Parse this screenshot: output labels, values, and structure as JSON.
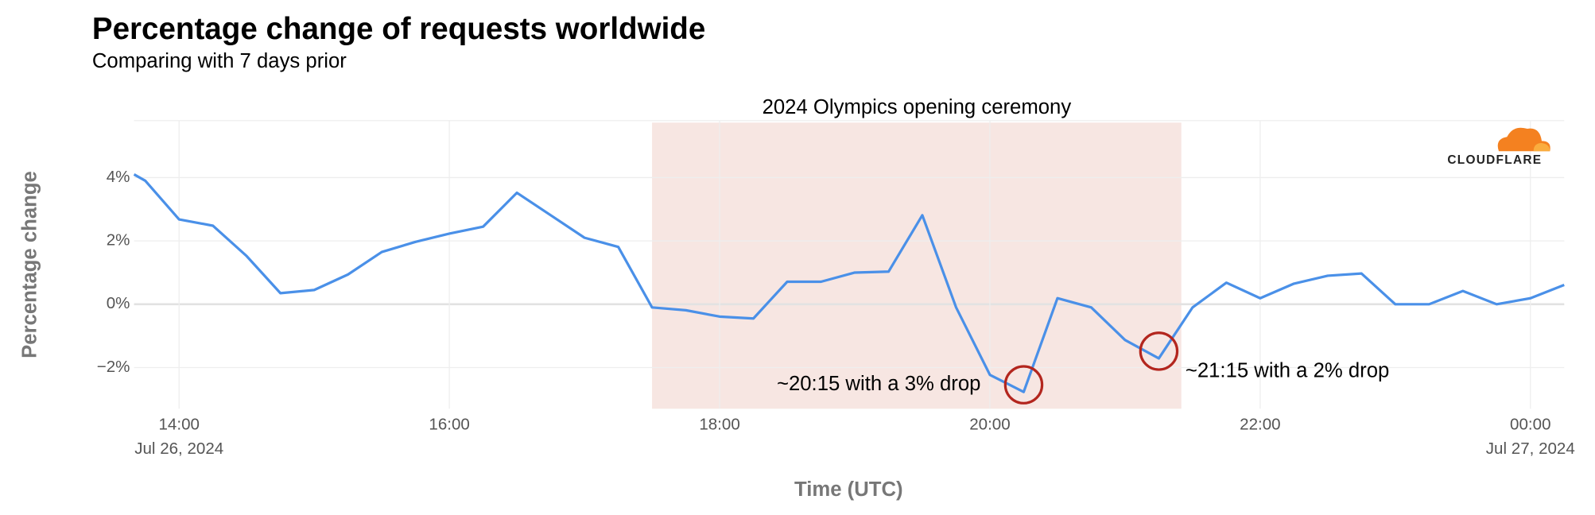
{
  "chart_data": {
    "type": "line",
    "title": "Percentage change of requests worldwide",
    "subtitle": "Comparing with 7 days prior",
    "x_label": "Time (UTC)",
    "y_label": "Percentage change",
    "logo": "CLOUDFLARE",
    "x": [
      "2024-07-26T13:40",
      "2024-07-26T13:45",
      "2024-07-26T14:00",
      "2024-07-26T14:15",
      "2024-07-26T14:30",
      "2024-07-26T14:45",
      "2024-07-26T15:00",
      "2024-07-26T15:15",
      "2024-07-26T15:30",
      "2024-07-26T15:45",
      "2024-07-26T16:00",
      "2024-07-26T16:15",
      "2024-07-26T16:30",
      "2024-07-26T16:45",
      "2024-07-26T17:00",
      "2024-07-26T17:15",
      "2024-07-26T17:30",
      "2024-07-26T17:45",
      "2024-07-26T18:00",
      "2024-07-26T18:15",
      "2024-07-26T18:30",
      "2024-07-26T18:45",
      "2024-07-26T19:00",
      "2024-07-26T19:15",
      "2024-07-26T19:30",
      "2024-07-26T19:45",
      "2024-07-26T20:00",
      "2024-07-26T20:15",
      "2024-07-26T20:30",
      "2024-07-26T20:45",
      "2024-07-26T21:00",
      "2024-07-26T21:15",
      "2024-07-26T21:30",
      "2024-07-26T21:45",
      "2024-07-26T22:00",
      "2024-07-26T22:15",
      "2024-07-26T22:30",
      "2024-07-26T22:45",
      "2024-07-26T23:00",
      "2024-07-26T23:15",
      "2024-07-26T23:30",
      "2024-07-26T23:45",
      "2024-07-27T00:00",
      "2024-07-27T00:15"
    ],
    "series": [
      {
        "color": "#4a90e8",
        "values": [
          4.1,
          3.9,
          2.68,
          2.48,
          1.52,
          0.35,
          0.45,
          0.94,
          1.65,
          1.97,
          2.23,
          2.45,
          3.52,
          2.81,
          2.1,
          1.81,
          -0.1,
          -0.19,
          -0.39,
          -0.45,
          0.71,
          0.71,
          1.0,
          1.03,
          2.81,
          -0.1,
          -2.23,
          -2.77,
          0.19,
          -0.1,
          -1.13,
          -1.71,
          -0.1,
          0.68,
          0.19,
          0.65,
          0.9,
          0.97,
          0.0,
          0.0,
          0.42,
          0.0,
          0.19,
          0.61
        ]
      }
    ],
    "xlim": [
      "2024-07-26T13:40",
      "2024-07-27T00:15"
    ],
    "xticks": [
      {
        "value": "2024-07-26T14:00",
        "label": "14:00",
        "date": "Jul 26, 2024"
      },
      {
        "value": "2024-07-26T16:00",
        "label": "16:00"
      },
      {
        "value": "2024-07-26T18:00",
        "label": "18:00"
      },
      {
        "value": "2024-07-26T20:00",
        "label": "20:00"
      },
      {
        "value": "2024-07-26T22:00",
        "label": "22:00"
      },
      {
        "value": "2024-07-27T00:00",
        "label": "00:00",
        "date": "Jul 27, 2024"
      }
    ],
    "ylim": [
      -3.3,
      5.8
    ],
    "yticks": [
      {
        "value": -2,
        "label": "−2%"
      },
      {
        "value": 0,
        "label": "0%"
      },
      {
        "value": 2,
        "label": "2%"
      },
      {
        "value": 4,
        "label": "4%"
      }
    ],
    "grid": true,
    "highlight": {
      "label": "2024 Olympics opening ceremony",
      "start": "2024-07-26T17:30",
      "end": "2024-07-26T21:25",
      "color": "#f7e6e2"
    },
    "annotations": [
      {
        "text": "~20:15 with a 3% drop",
        "x": "2024-07-26T20:15",
        "side": "left",
        "color": "#b3261e"
      },
      {
        "text": "~21:15 with a 2% drop",
        "x": "2024-07-26T21:15",
        "side": "right",
        "color": "#b3261e"
      }
    ]
  }
}
